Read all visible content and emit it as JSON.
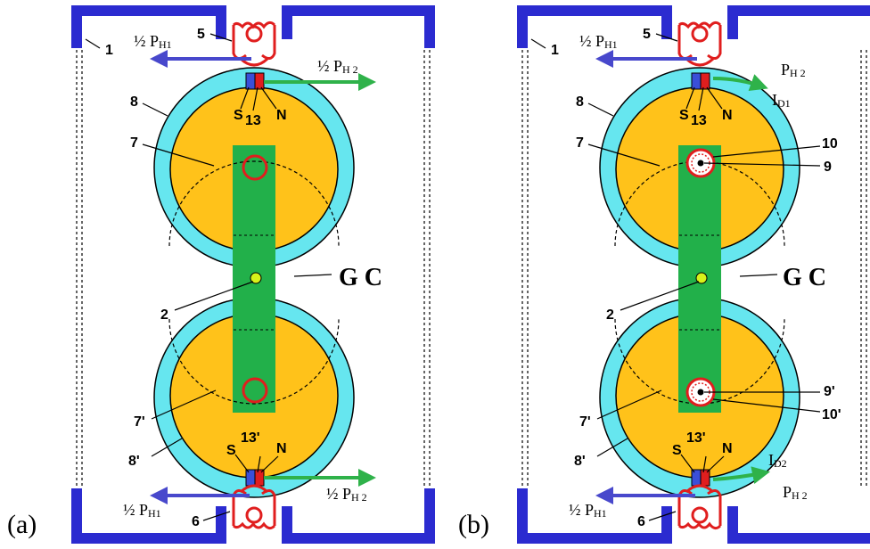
{
  "colors": {
    "frame": "#2b2bd0",
    "ring": "#66e6ef",
    "disk": "#ffc21a",
    "bar": "#22b04a",
    "coil": "#e01e1e",
    "arrow_blue": "#4848cc",
    "arrow_green": "#2fb24a",
    "magnet_s": "#3a4fd8",
    "magnet_n": "#e01e1e",
    "center_dot": "#d7f21a"
  },
  "panel_a": {
    "panel_label": "(a)",
    "labels": {
      "n1": "1",
      "n5": "5",
      "n6": "6",
      "n7": "7",
      "n7p": "7'",
      "n8": "8",
      "n8p": "8'",
      "n2": "2",
      "n13": "13",
      "n13p": "13'",
      "s_top": "S",
      "n_top": "N",
      "s_bot": "S",
      "n_bot": "N",
      "gc": "G C"
    },
    "forces": {
      "ph1_top": "½ P",
      "ph1_top_sub": "H1",
      "ph2_top": "½ P",
      "ph2_top_sub": "H 2",
      "ph1_bot": "½ P",
      "ph1_bot_sub": "H1",
      "ph2_bot": "½ P",
      "ph2_bot_sub": "H 2"
    }
  },
  "panel_b": {
    "panel_label": "(b)",
    "labels": {
      "n1": "1",
      "n5": "5",
      "n6": "6",
      "n7": "7",
      "n7p": "7'",
      "n8": "8",
      "n8p": "8'",
      "n2": "2",
      "n13": "13",
      "n13p": "13'",
      "s_top": "S",
      "n_top": "N",
      "s_bot": "S",
      "n_bot": "N",
      "n9": "9",
      "n9p": "9'",
      "n10": "10",
      "n10p": "10'",
      "gc": "G C"
    },
    "forces": {
      "ph1_top": "½ P",
      "ph1_top_sub": "H1",
      "ph2_top": "P",
      "ph2_top_sub": "H 2",
      "id1": "I",
      "id1_sub": "D1",
      "ph1_bot": "½ P",
      "ph1_bot_sub": "H1",
      "ph2_bot": "P",
      "ph2_bot_sub": "H 2",
      "id2": "I",
      "id2_sub": "D2"
    }
  }
}
